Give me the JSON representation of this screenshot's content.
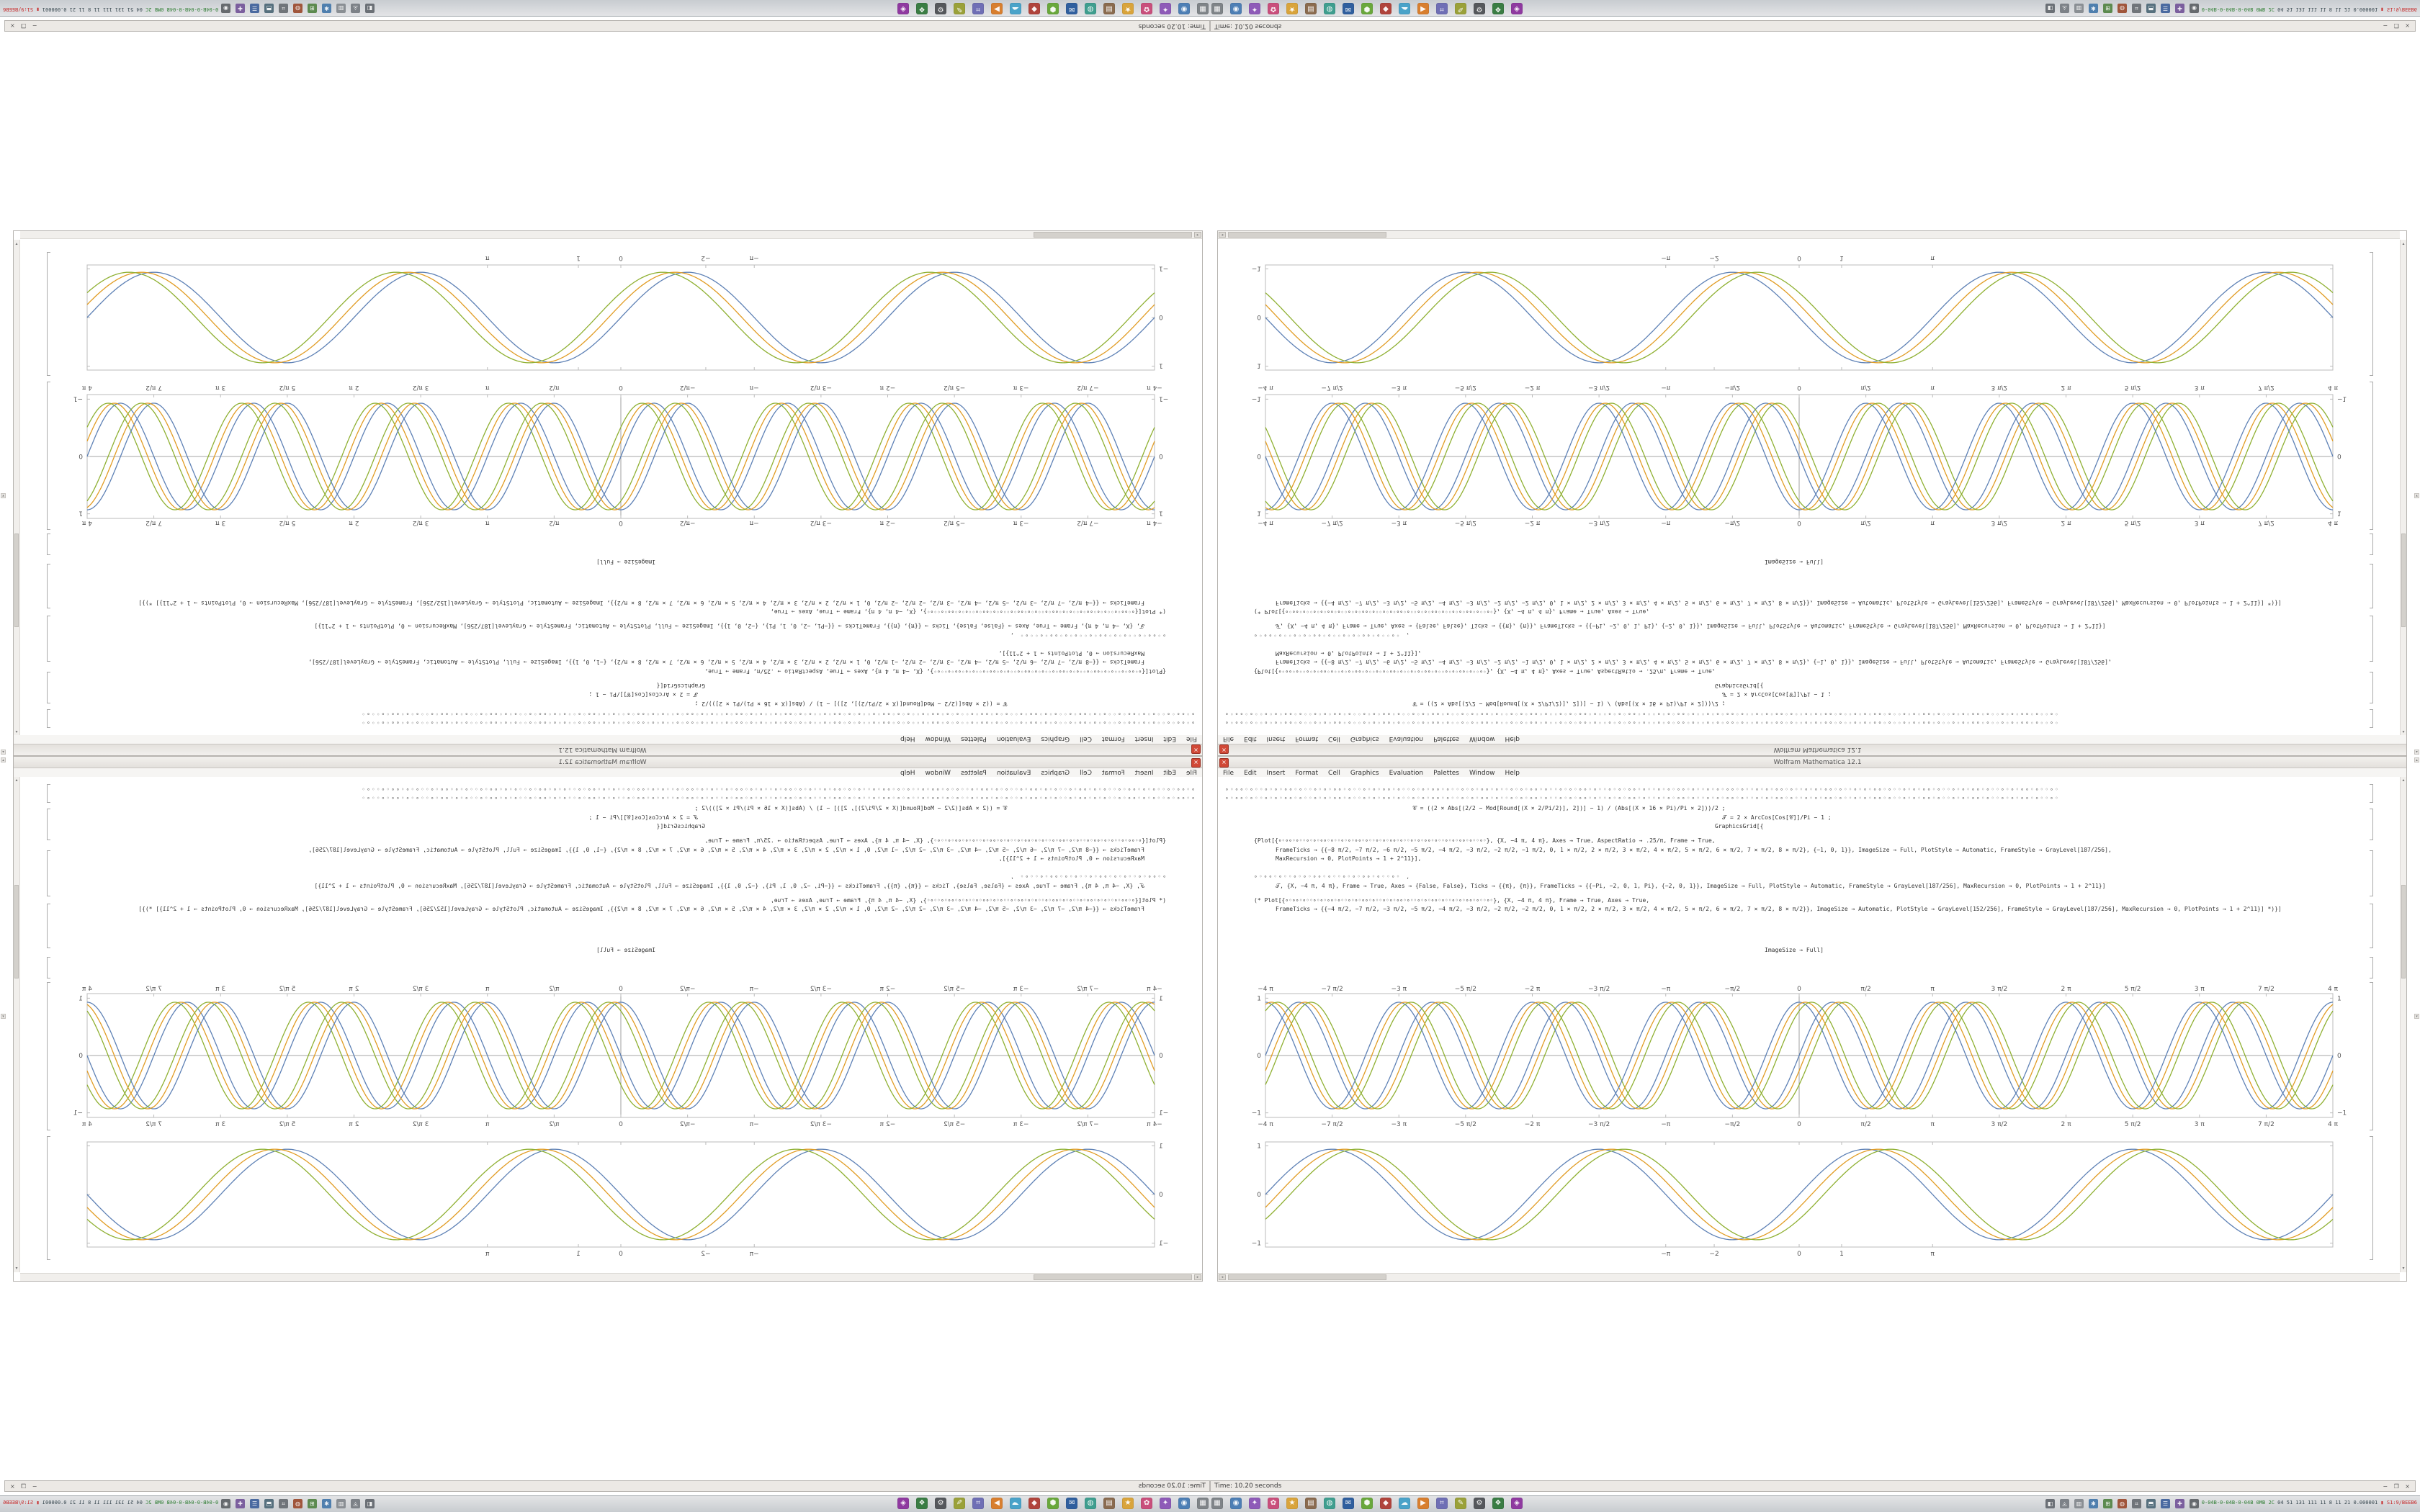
{
  "window": {
    "title": "Wolfram Mathematica 12.1",
    "close_glyph": "×",
    "menu": [
      "File",
      "Edit",
      "Insert",
      "Format",
      "Cell",
      "Graphics",
      "Evaluation",
      "Palettes",
      "Window",
      "Help"
    ],
    "code_lines": [
      {
        "t": "∘◦∘∘◦∘◦◦∘◦∘◦∘∘◦∘◦◦∘◦∘◦∘∘◦∘◦◦∘◦∘◦∘∘◦∘◦◦∘◦∘◦∘∘◦∘◦◦∘◦∘◦∘∘◦∘◦◦∘◦∘◦∘∘◦∘◦◦∘◦∘◦∘∘◦∘◦◦∘◦∘◦∘∘◦∘◦◦∘◦∘◦∘∘◦∘◦◦∘◦∘◦∘∘◦∘◦◦∘◦∘◦∘∘◦∘◦◦∘◦∘◦∘∘◦∘◦◦∘◦∘◦∘∘◦∘◦◦∘◦∘◦∘∘◦∘◦◦∘◦∘◦∘∘◦∘◦◦∘◦∘◦∘∘◦∘◦◦∘◦",
        "mt": 0,
        "cls": "dots"
      },
      {
        "t": "∘◦∘∘◦∘◦◦∘◦∘◦∘∘◦∘◦◦∘◦∘◦∘∘◦∘◦◦∘◦∘◦∘∘◦∘◦◦∘◦∘◦∘∘◦∘◦◦∘◦∘◦∘∘◦∘◦◦∘◦∘◦∘∘◦∘◦◦∘◦∘◦∘∘◦∘◦◦∘◦∘◦∘∘◦∘◦◦∘◦∘◦∘∘◦∘◦◦∘◦∘◦∘∘◦∘◦◦∘◦∘◦∘∘◦∘◦◦∘◦∘◦∘∘◦∘◦◦∘◦∘◦∘∘◦∘◦◦∘◦∘◦∘∘◦∘◦◦∘◦∘◦∘∘◦∘◦◦∘◦∘◦∘∘◦∘◦◦∘◦",
        "mt": 1,
        "cls": "dots"
      },
      {
        "t": "𝒞 = ((2 × Abs[(2/2 − Mod[Round[(X × 2/Pi/2)], 2])] − 1) / (Abs[(X × 16 × Pi)/Pi × 2]))/2 ;",
        "mt": 3,
        "indent": 260
      },
      {
        "t": "𝒯 = 2 × ArcCos[Cos[𝒞]]/Pi − 1 ;",
        "mt": 2,
        "indent": 690
      },
      {
        "t": "GraphicsGrid[{",
        "mt": 1,
        "indent": 680
      },
      {
        "t": "{Plot[{∘◦∘∘◦∘◦◦∘◦∘◦∘∘◦∘◦◦∘◦∘◦∘∘◦∘◦◦∘◦∘◦∘∘◦∘◦◦∘◦∘◦∘∘◦∘◦◦∘◦∘◦∘∘◦∘◦◦∘◦}, {X, −4 π, 4 π}, Axes → True, AspectRatio → .25/π, Frame → True,",
        "mt": 9,
        "indent": 40
      },
      {
        "t": "FrameTicks → {{−8 π/2, −7 π/2, −6 π/2, −5 π/2, −4 π/2, −3 π/2, −2 π/2, −1 π/2, 0, 1 × π/2, 2 × π/2, 3 × π/2, 4 × π/2, 5 × π/2, 6 × π/2, 7 × π/2, 8 × π/2}, {−1, 0, 1}}, ImageSize → Full, PlotStyle → Automatic, FrameStyle → GrayLevel[187/256],",
        "mt": 2,
        "indent": 70
      },
      {
        "t": "MaxRecursion → 0, PlotPoints → 1 + 2^11}],",
        "mt": 1,
        "indent": 70
      },
      {
        "t": "∘◦∘∘◦∘◦◦∘◦∘◦∘∘◦∘◦◦∘◦∘◦∘∘◦∘◦◦∘◦ ,",
        "mt": 14,
        "indent": 40,
        "cls": "dots"
      },
      {
        "t": "𝒯, {X, −4 π, 4 π}, Frame → True, Axes → {False, False}, Ticks → {{π}, {π}}, FrameTicks → {{−Pi, −2, 0, 1, Pi}, {−2, 0, 1}}, ImageSize → Full, PlotStyle → Automatic, FrameStyle → GrayLevel[187/256], MaxRecursion → 0, PlotPoints → 1 + 2^11}]",
        "mt": 2,
        "indent": 70
      },
      {
        "t": "(* Plot[{∘◦∘∘◦∘◦◦∘◦∘◦∘∘◦∘◦◦∘◦∘◦∘∘◦∘◦◦∘◦∘◦∘∘◦∘◦◦∘◦∘◦∘∘◦∘◦◦∘◦∘◦∘∘◦∘◦◦∘◦}, {X, −4 π, 4 π}, Frame → True, Axes → True,",
        "mt": 9,
        "indent": 40
      },
      {
        "t": "FrameTicks → {{−4 π/2, −7 π/2, −3 π/2, −5 π/2, −4 π/2, −3 π/2, −2 π/2, −2 π/2, 0, 1 × π/2, 2 × π/2, 3 × π/2, 4 × π/2, 5 × π/2, 6 × π/2, 7 × π/2, 8 × π/2}}, ImageSize → Automatic, PlotStyle → GrayLevel[152/256], FrameStyle → GrayLevel[187/256], MaxRecursion → 0, PlotPoints → 1 + 2^11}] *)}]",
        "mt": 1,
        "indent": 70
      },
      {
        "t": "ImageSize → Full]",
        "mt": 46,
        "align": "center"
      }
    ]
  },
  "plots": [
    {
      "name": "trig-comparison-axis-plot",
      "type": "line",
      "xmin": -12.566,
      "xmax": 12.566,
      "ymin": -1.08,
      "ymax": 1.08,
      "frame": "#bbbbbb",
      "axes": true,
      "xlabels": "both",
      "ylabels": "both",
      "margins": {
        "t": 16,
        "b": 18,
        "l": 46,
        "r": 46
      },
      "xticks": [
        {
          "v": -12.566,
          "l": "−4 π"
        },
        {
          "v": -10.996,
          "l": "−7 π/2"
        },
        {
          "v": -9.4248,
          "l": "−3 π"
        },
        {
          "v": -7.854,
          "l": "−5 π/2"
        },
        {
          "v": -6.2832,
          "l": "−2 π"
        },
        {
          "v": -4.7124,
          "l": "−3 π/2"
        },
        {
          "v": -3.1416,
          "l": "−π"
        },
        {
          "v": -1.5708,
          "l": "−π/2"
        },
        {
          "v": 0,
          "l": "0"
        },
        {
          "v": 1.5708,
          "l": "π/2"
        },
        {
          "v": 3.1416,
          "l": "π"
        },
        {
          "v": 4.7124,
          "l": "3 π/2"
        },
        {
          "v": 6.2832,
          "l": "2 π"
        },
        {
          "v": 7.854,
          "l": "5 π/2"
        },
        {
          "v": 9.4248,
          "l": "3 π"
        },
        {
          "v": 10.996,
          "l": "7 π/2"
        },
        {
          "v": 12.566,
          "l": "4 π"
        }
      ],
      "yticks": [
        {
          "v": 1,
          "l": "1"
        },
        {
          "v": 0,
          "l": "0"
        },
        {
          "v": -1,
          "l": "−1"
        }
      ],
      "series": [
        {
          "name": "sin-a",
          "fn": "sin",
          "freq": 2,
          "phase": 0,
          "amp": 0.93,
          "color": "#5E81B5"
        },
        {
          "name": "sin-b",
          "fn": "sin",
          "freq": 2,
          "phase": -0.29,
          "amp": 0.93,
          "color": "#E19C24"
        },
        {
          "name": "sin-c",
          "fn": "sin",
          "freq": 2,
          "phase": -0.58,
          "amp": 0.93,
          "color": "#8FB032"
        },
        {
          "name": "cos-a",
          "fn": "cos",
          "freq": 2,
          "phase": 0,
          "amp": 0.93,
          "color": "#5E81B5"
        },
        {
          "name": "cos-b",
          "fn": "cos",
          "freq": 2,
          "phase": -0.29,
          "amp": 0.93,
          "color": "#E19C24"
        },
        {
          "name": "cos-c",
          "fn": "cos",
          "freq": 2,
          "phase": -0.58,
          "amp": 0.93,
          "color": "#8FB032"
        }
      ]
    },
    {
      "name": "trig-comparison-framed-plot",
      "type": "line",
      "xmin": -12.566,
      "xmax": 12.566,
      "ymin": -1.08,
      "ymax": 1.08,
      "frame": "#bbbbbb",
      "axes": false,
      "xlabels": "bottom",
      "ylabels": "left",
      "margins": {
        "t": 8,
        "b": 18,
        "l": 46,
        "r": 46
      },
      "xticks": [
        {
          "v": -3.1416,
          "l": "−π"
        },
        {
          "v": -2,
          "l": "−2"
        },
        {
          "v": 0,
          "l": "0"
        },
        {
          "v": 1,
          "l": "1"
        },
        {
          "v": 3.1416,
          "l": "π"
        }
      ],
      "yticks": [
        {
          "v": 1,
          "l": "1"
        },
        {
          "v": 0,
          "l": "0"
        },
        {
          "v": -1,
          "l": "−1"
        }
      ],
      "series": [
        {
          "name": "sin-a",
          "fn": "sin",
          "freq": 1,
          "phase": 0,
          "amp": 0.93,
          "color": "#5E81B5"
        },
        {
          "name": "sin-b",
          "fn": "sin",
          "freq": 1,
          "phase": -0.29,
          "amp": 0.93,
          "color": "#E19C24"
        },
        {
          "name": "sin-c",
          "fn": "sin",
          "freq": 1,
          "phase": -0.58,
          "amp": 0.93,
          "color": "#8FB032"
        }
      ]
    }
  ],
  "terminal": {
    "title": "Time: 10.20 seconds",
    "buttons": "− ❐ ×"
  },
  "taskbar": {
    "apps": [
      {
        "name": "files",
        "bg": "#7f8488",
        "glyph": "▦"
      },
      {
        "name": "browser",
        "bg": "#4d7fb5",
        "glyph": "◉"
      },
      {
        "name": "chat",
        "bg": "#8e5bb8",
        "glyph": "✦"
      },
      {
        "name": "media",
        "bg": "#c94f7c",
        "glyph": "✿"
      },
      {
        "name": "notes",
        "bg": "#d9a43b",
        "glyph": "★"
      },
      {
        "name": "archive",
        "bg": "#8a6b4f",
        "glyph": "▤"
      },
      {
        "name": "system",
        "bg": "#3f9e8f",
        "glyph": "◍"
      },
      {
        "name": "mail",
        "bg": "#2f5f9e",
        "glyph": "✉"
      },
      {
        "name": "package",
        "bg": "#69a83c",
        "glyph": "⬢"
      },
      {
        "name": "editor",
        "bg": "#b0443c",
        "glyph": "◆"
      },
      {
        "name": "cloud",
        "bg": "#4aa3c9",
        "glyph": "☁"
      },
      {
        "name": "player",
        "bg": "#d87f2f",
        "glyph": "▶"
      },
      {
        "name": "terminal",
        "bg": "#6f6fb5",
        "glyph": "⌗"
      },
      {
        "name": "writer",
        "bg": "#9aa13a",
        "glyph": "✎"
      },
      {
        "name": "settings",
        "bg": "#55585c",
        "glyph": "⚙"
      },
      {
        "name": "ide",
        "bg": "#3a7d44",
        "glyph": "❖"
      },
      {
        "name": "graphics",
        "bg": "#8f3aa0",
        "glyph": "◈"
      }
    ],
    "tray": [
      {
        "name": "network",
        "bg": "#6b7076",
        "glyph": "◧"
      },
      {
        "name": "volume",
        "bg": "#7d8288",
        "glyph": "◬"
      },
      {
        "name": "clipboard",
        "bg": "#8a8f94",
        "glyph": "▥"
      },
      {
        "name": "updates",
        "bg": "#4f7fae",
        "glyph": "✱"
      },
      {
        "name": "battery",
        "bg": "#5c8a4f",
        "glyph": "⊞"
      },
      {
        "name": "shield",
        "bg": "#a0563c",
        "glyph": "◍"
      },
      {
        "name": "keyboard",
        "bg": "#70757a",
        "glyph": "⌗"
      },
      {
        "name": "display",
        "bg": "#56707e",
        "glyph": "⬒"
      },
      {
        "name": "bluetooth",
        "bg": "#4a6aa0",
        "glyph": "☰"
      },
      {
        "name": "health",
        "bg": "#7b5f9e",
        "glyph": "✚"
      },
      {
        "name": "session",
        "bg": "#666a6e",
        "glyph": "◉"
      }
    ],
    "monitor_parts": [
      {
        "t": "0-04B-0-04B-0-04B 0MB 2C ",
        "c": "#2e7d32"
      },
      {
        "t": "04 51 131 111 11 8 11 21 0.000001 ",
        "c": "#37474f"
      },
      {
        "t": "▮ S1:9/BEEB6",
        "c": "#c62828"
      }
    ]
  },
  "glyphs": {
    "up_small": "▴",
    "down_small": "▾",
    "left_small": "◂"
  },
  "colors": {
    "accent_red": "#d14836",
    "frame_gray": "#bbbbbb",
    "series": [
      "#5E81B5",
      "#E19C24",
      "#8FB032"
    ]
  }
}
